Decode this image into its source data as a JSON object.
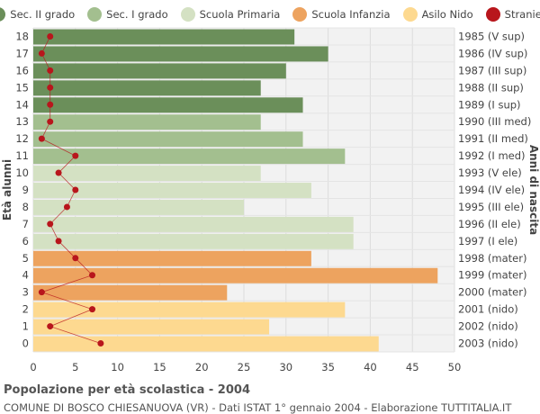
{
  "legend": [
    {
      "label": "Sec. II grado",
      "color": "#6b8f5a"
    },
    {
      "label": "Sec. I grado",
      "color": "#a3bf8f"
    },
    {
      "label": "Scuola Primaria",
      "color": "#d4e1c3"
    },
    {
      "label": "Scuola Infanzia",
      "color": "#eda35f"
    },
    {
      "label": "Asilo Nido",
      "color": "#fdd990"
    },
    {
      "label": "Stranieri",
      "color": "#b8161c"
    }
  ],
  "footer": {
    "title": "Popolazione per età scolastica - 2004",
    "subtitle": "COMUNE DI BOSCO CHIESANUOVA (VR) - Dati ISTAT 1° gennaio 2004 - Elaborazione TUTTITALIA.IT"
  },
  "chart_data": {
    "type": "bar",
    "orientation": "horizontal",
    "title": "Popolazione per età scolastica - 2004",
    "ylabel": "Età alunni",
    "ylabel_right": "Anni di nascita",
    "xlim": [
      0,
      50
    ],
    "x_ticks": [
      0,
      5,
      10,
      15,
      20,
      25,
      30,
      35,
      40,
      45,
      50
    ],
    "grid": true,
    "legend_position": "top",
    "categories": [
      "18",
      "17",
      "16",
      "15",
      "14",
      "13",
      "12",
      "11",
      "10",
      "9",
      "8",
      "7",
      "6",
      "5",
      "4",
      "3",
      "2",
      "1",
      "0"
    ],
    "birth_years": [
      "1985 (V sup)",
      "1986 (IV sup)",
      "1987 (III sup)",
      "1988 (II sup)",
      "1989 (I sup)",
      "1990 (III med)",
      "1991 (II med)",
      "1992 (I med)",
      "1993 (V ele)",
      "1994 (IV ele)",
      "1995 (III ele)",
      "1996 (II ele)",
      "1997 (I ele)",
      "1998 (mater)",
      "1999 (mater)",
      "2000 (mater)",
      "2001 (nido)",
      "2002 (nido)",
      "2003 (nido)"
    ],
    "values": [
      31,
      35,
      30,
      27,
      32,
      27,
      32,
      37,
      27,
      33,
      25,
      38,
      38,
      33,
      48,
      23,
      37,
      28,
      41
    ],
    "school_level": [
      "Sec. II grado",
      "Sec. II grado",
      "Sec. II grado",
      "Sec. II grado",
      "Sec. II grado",
      "Sec. I grado",
      "Sec. I grado",
      "Sec. I grado",
      "Scuola Primaria",
      "Scuola Primaria",
      "Scuola Primaria",
      "Scuola Primaria",
      "Scuola Primaria",
      "Scuola Infanzia",
      "Scuola Infanzia",
      "Scuola Infanzia",
      "Asilo Nido",
      "Asilo Nido",
      "Asilo Nido"
    ],
    "series": [
      {
        "name": "Stranieri",
        "values": [
          2,
          1,
          2,
          2,
          2,
          2,
          1,
          5,
          3,
          5,
          4,
          2,
          3,
          5,
          7,
          1,
          7,
          2,
          8
        ]
      }
    ]
  }
}
